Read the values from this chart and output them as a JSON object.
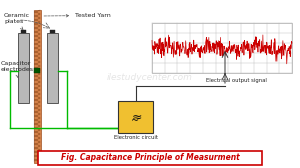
{
  "title": "Fig. Capacitance Principle of Measurment",
  "bg_color": "#ffffff",
  "plate_color": "#b8b8b8",
  "plate_edge": "#555555",
  "yarn_color": "#d4824a",
  "wire_color": "#00bb00",
  "box_color": "#f0c030",
  "signal_color": "#cc0000",
  "grid_color": "#bbbbbb",
  "label_ceramic": "Ceramic\nplates",
  "label_cap": "Capacitor\nelectrodes",
  "label_yarn": "Tested Yarn",
  "label_signal": "Electrical output signal",
  "label_circuit": "Electronic circuit",
  "watermark": "ilestudycenter.com",
  "arrow_color": "#555555",
  "line_color": "#333333"
}
